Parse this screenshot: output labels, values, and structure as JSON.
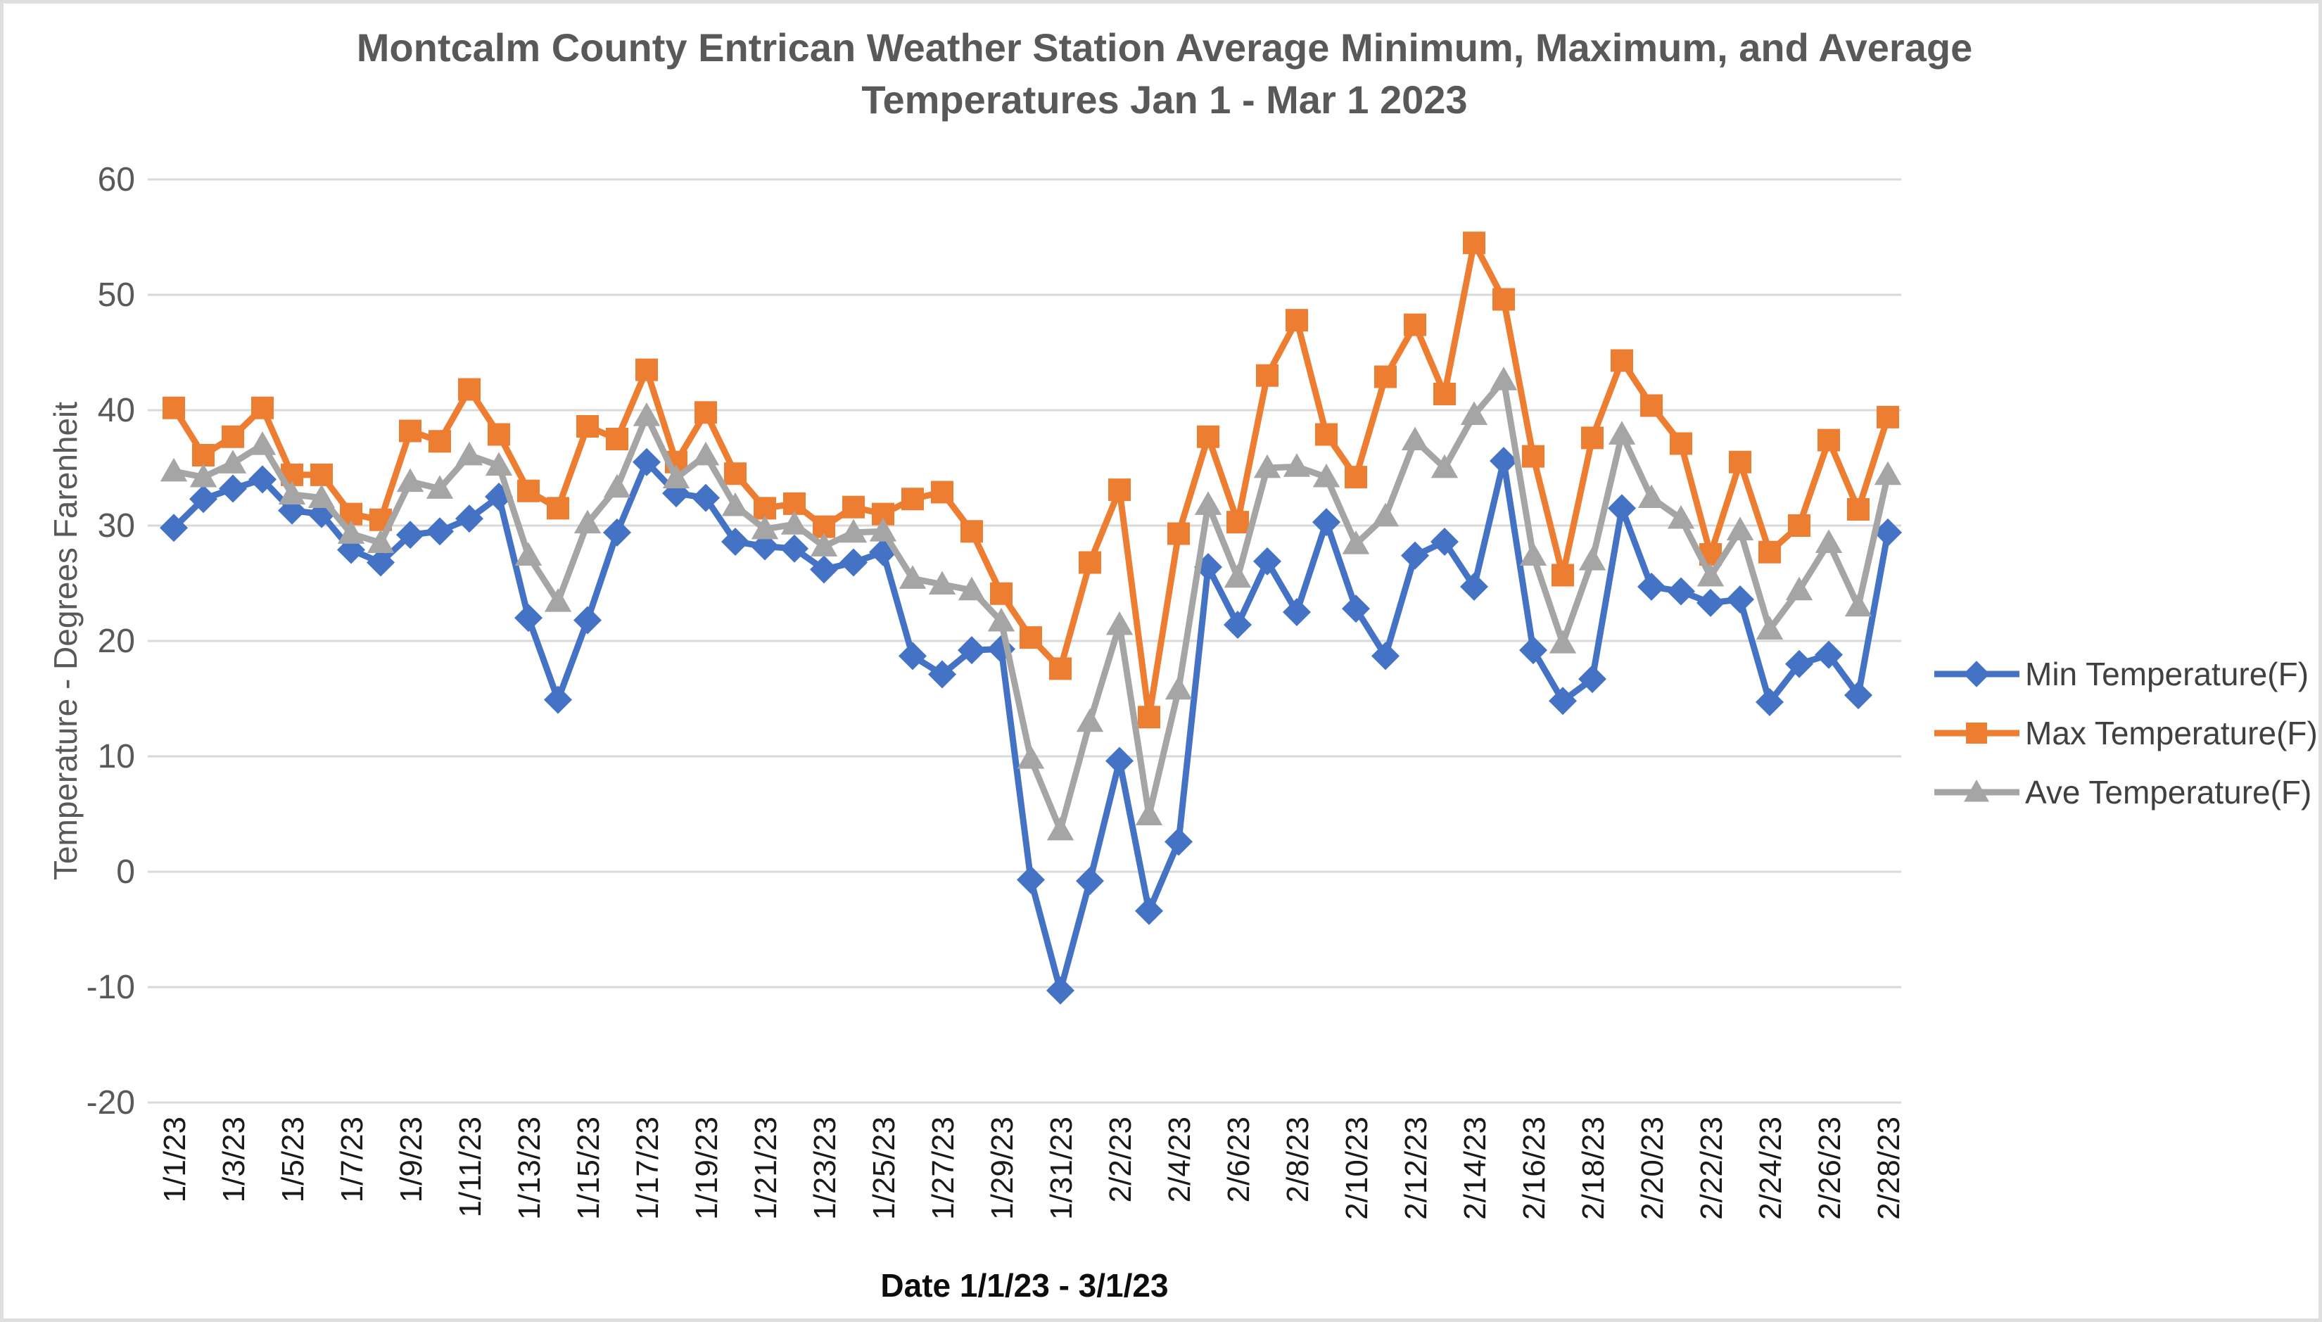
{
  "title": {
    "line1": "Montcalm County Entrican Weather Station Average Minimum, Maximum, and Average",
    "line2": "Temperatures Jan 1 - Mar 1 2023"
  },
  "y_axis": {
    "title": "Temperature - Degrees Farenheit",
    "ticks": [
      60,
      50,
      40,
      30,
      20,
      10,
      0,
      -10,
      -20
    ]
  },
  "x_axis": {
    "title": "Date 1/1/23 - 3/1/23",
    "label_every": 2
  },
  "legend": {
    "position": "right",
    "items": [
      {
        "label": "Min Temperature(F)",
        "marker": "diamond",
        "color": "#4472C4"
      },
      {
        "label": "Max Temperature(F)",
        "marker": "square",
        "color": "#ED7D31"
      },
      {
        "label": "Ave Temperature(F)",
        "marker": "triangle",
        "color": "#A5A5A5"
      }
    ]
  },
  "colors": {
    "min_series": "#4472C4",
    "max_series": "#ED7D31",
    "ave_series": "#A5A5A5",
    "gridline": "#D9D9D9",
    "title_text": "#595959",
    "axis_tick_text": "#595959",
    "x_tick_text": "#1a1a1a",
    "background": "#ffffff"
  },
  "chart_data": {
    "type": "line",
    "title": "Montcalm County Entrican Weather Station Average Minimum, Maximum, and Average Temperatures Jan 1 - Mar 1 2023",
    "xlabel": "Date 1/1/23 - 3/1/23",
    "ylabel": "Temperature - Degrees Farenheit",
    "ylim": [
      -20,
      60
    ],
    "grid": true,
    "legend_position": "right",
    "categories": [
      "1/1/23",
      "1/2/23",
      "1/3/23",
      "1/4/23",
      "1/5/23",
      "1/6/23",
      "1/7/23",
      "1/8/23",
      "1/9/23",
      "1/10/23",
      "1/11/23",
      "1/12/23",
      "1/13/23",
      "1/14/23",
      "1/15/23",
      "1/16/23",
      "1/17/23",
      "1/18/23",
      "1/19/23",
      "1/20/23",
      "1/21/23",
      "1/22/23",
      "1/23/23",
      "1/24/23",
      "1/25/23",
      "1/26/23",
      "1/27/23",
      "1/28/23",
      "1/29/23",
      "1/30/23",
      "1/31/23",
      "2/1/23",
      "2/2/23",
      "2/3/23",
      "2/4/23",
      "2/5/23",
      "2/6/23",
      "2/7/23",
      "2/8/23",
      "2/9/23",
      "2/10/23",
      "2/11/23",
      "2/12/23",
      "2/13/23",
      "2/14/23",
      "2/15/23",
      "2/16/23",
      "2/17/23",
      "2/18/23",
      "2/19/23",
      "2/20/23",
      "2/21/23",
      "2/22/23",
      "2/23/23",
      "2/24/23",
      "2/25/23",
      "2/26/23",
      "2/27/23",
      "2/28/23"
    ],
    "series": [
      {
        "name": "Min Temperature(F)",
        "marker": "diamond",
        "color": "#4472C4",
        "values": [
          29.8,
          32.3,
          33.2,
          34.0,
          31.3,
          31.0,
          27.9,
          26.8,
          29.2,
          29.5,
          30.6,
          32.5,
          22.0,
          14.9,
          21.8,
          29.4,
          35.5,
          32.8,
          32.4,
          28.6,
          28.2,
          28.0,
          26.2,
          26.8,
          27.7,
          18.7,
          17.1,
          19.2,
          19.3,
          -0.7,
          -10.3,
          -0.8,
          9.6,
          -3.4,
          2.6,
          26.4,
          21.4,
          26.9,
          22.5,
          30.3,
          22.8,
          18.7,
          27.4,
          28.6,
          24.7,
          35.6,
          19.2,
          14.8,
          16.7,
          31.5,
          24.7,
          24.3,
          23.3,
          23.6,
          14.7,
          18.0,
          18.8,
          15.3,
          29.4
        ]
      },
      {
        "name": "Max Temperature(F)",
        "marker": "square",
        "color": "#ED7D31",
        "values": [
          40.2,
          36.1,
          37.7,
          40.2,
          34.4,
          34.4,
          31.0,
          30.5,
          38.2,
          37.3,
          41.8,
          37.9,
          33.0,
          31.5,
          38.6,
          37.5,
          43.5,
          35.5,
          39.8,
          34.5,
          31.5,
          31.9,
          29.9,
          31.6,
          31.0,
          32.3,
          32.9,
          29.5,
          24.1,
          20.3,
          17.6,
          26.8,
          33.1,
          13.4,
          29.3,
          37.7,
          30.3,
          43.0,
          47.8,
          37.9,
          34.2,
          42.9,
          47.4,
          41.4,
          54.5,
          49.6,
          36.0,
          25.7,
          37.6,
          44.3,
          40.4,
          37.1,
          27.5,
          35.5,
          27.7,
          30.0,
          37.4,
          31.4,
          39.4
        ]
      },
      {
        "name": "Ave Temperature(F)",
        "marker": "triangle",
        "color": "#A5A5A5",
        "values": [
          34.7,
          34.2,
          35.4,
          37.0,
          32.7,
          32.4,
          29.3,
          28.5,
          33.8,
          33.2,
          36.1,
          35.2,
          27.4,
          23.4,
          30.2,
          33.3,
          39.5,
          34.1,
          36.1,
          31.7,
          29.7,
          30.1,
          28.2,
          29.4,
          29.5,
          25.4,
          24.9,
          24.4,
          21.7,
          9.8,
          3.6,
          13.0,
          21.4,
          4.9,
          15.8,
          31.8,
          25.5,
          35.0,
          35.1,
          34.2,
          28.4,
          30.8,
          37.4,
          35.0,
          39.6,
          42.6,
          27.4,
          19.8,
          27.0,
          37.9,
          32.4,
          30.6,
          25.6,
          29.6,
          21.0,
          24.4,
          28.5,
          23.0,
          34.4
        ]
      }
    ]
  }
}
